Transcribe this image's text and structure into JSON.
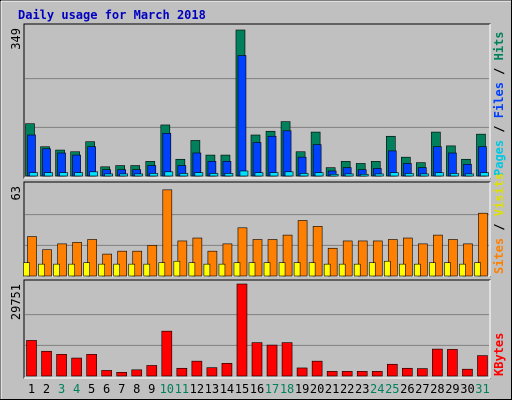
{
  "title": "Daily usage for March 2018",
  "colors": {
    "background": "#c0c0c0",
    "hits": "#00805c",
    "files": "#0040ff",
    "pages": "#00e0ff",
    "visits": "#ffff00",
    "sites": "#ff8000",
    "kbytes": "#ff0000"
  },
  "chart_data": [
    {
      "type": "bar",
      "panel": "top",
      "ymax_label": "349",
      "ylim": [
        0,
        349
      ],
      "grid": true,
      "right_labels": [
        "Pages",
        "Files",
        "Hits"
      ],
      "categories": [
        "1",
        "2",
        "3",
        "4",
        "5",
        "6",
        "7",
        "8",
        "9",
        "10",
        "11",
        "12",
        "13",
        "14",
        "15",
        "16",
        "17",
        "18",
        "19",
        "20",
        "21",
        "22",
        "23",
        "24",
        "25",
        "26",
        "27",
        "28",
        "29",
        "30",
        "31"
      ],
      "series": [
        {
          "name": "Hits",
          "values": [
            125,
            70,
            62,
            58,
            82,
            22,
            25,
            25,
            35,
            122,
            40,
            85,
            50,
            50,
            349,
            98,
            107,
            130,
            58,
            105,
            20,
            35,
            30,
            35,
            95,
            45,
            32,
            105,
            72,
            40,
            100
          ]
        },
        {
          "name": "Files",
          "values": [
            98,
            65,
            55,
            50,
            70,
            15,
            15,
            15,
            25,
            102,
            25,
            55,
            35,
            35,
            288,
            80,
            95,
            108,
            45,
            75,
            12,
            20,
            15,
            18,
            60,
            30,
            20,
            70,
            55,
            28,
            70
          ]
        },
        {
          "name": "Pages",
          "values": [
            8,
            8,
            8,
            8,
            10,
            5,
            5,
            5,
            6,
            10,
            6,
            8,
            6,
            6,
            12,
            8,
            8,
            10,
            6,
            8,
            4,
            5,
            4,
            5,
            8,
            6,
            5,
            8,
            6,
            5,
            8
          ]
        }
      ]
    },
    {
      "type": "bar",
      "panel": "middle",
      "ymax_label": "63",
      "ylim": [
        0,
        63
      ],
      "grid": true,
      "right_labels": [
        "Sites",
        "Visits"
      ],
      "categories": [
        "1",
        "2",
        "3",
        "4",
        "5",
        "6",
        "7",
        "8",
        "9",
        "10",
        "11",
        "12",
        "13",
        "14",
        "15",
        "16",
        "17",
        "18",
        "19",
        "20",
        "21",
        "22",
        "23",
        "24",
        "25",
        "26",
        "27",
        "28",
        "29",
        "30",
        "31"
      ],
      "series": [
        {
          "name": "Sites",
          "values": [
            27,
            18,
            22,
            23,
            25,
            15,
            17,
            17,
            21,
            59,
            24,
            26,
            17,
            22,
            33,
            25,
            25,
            28,
            38,
            34,
            19,
            24,
            24,
            24,
            25,
            26,
            22,
            28,
            25,
            22,
            43
          ]
        },
        {
          "name": "Visits",
          "values": [
            5,
            4,
            4,
            4,
            5,
            4,
            4,
            4,
            4,
            5,
            6,
            5,
            4,
            4,
            5,
            5,
            5,
            5,
            5,
            5,
            4,
            4,
            4,
            5,
            6,
            4,
            4,
            5,
            5,
            4,
            5
          ]
        }
      ]
    },
    {
      "type": "bar",
      "panel": "bottom",
      "ymax_label": "29751",
      "ylim": [
        0,
        29751
      ],
      "grid": true,
      "right_labels": [
        "KBytes"
      ],
      "categories": [
        "1",
        "2",
        "3",
        "4",
        "5",
        "6",
        "7",
        "8",
        "9",
        "10",
        "11",
        "12",
        "13",
        "14",
        "15",
        "16",
        "17",
        "18",
        "19",
        "20",
        "21",
        "22",
        "23",
        "24",
        "25",
        "26",
        "27",
        "28",
        "29",
        "30",
        "31"
      ],
      "series": [
        {
          "name": "KBytes",
          "values": [
            11500,
            8000,
            7000,
            5800,
            7000,
            1800,
            1200,
            2000,
            3400,
            14500,
            2500,
            4800,
            2700,
            4100,
            29751,
            10800,
            10000,
            10800,
            2600,
            4800,
            1500,
            1500,
            1500,
            1500,
            3800,
            2500,
            2400,
            8700,
            8600,
            2200,
            6600
          ]
        }
      ]
    }
  ],
  "weekend_days": [
    3,
    4,
    10,
    11,
    17,
    18,
    24,
    25,
    31
  ]
}
